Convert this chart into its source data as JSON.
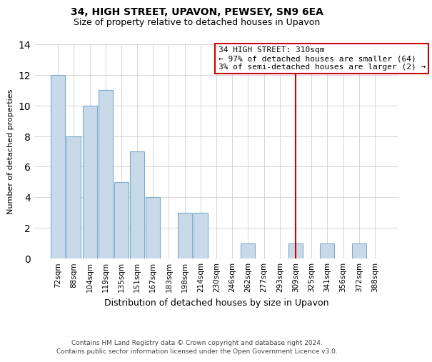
{
  "title": "34, HIGH STREET, UPAVON, PEWSEY, SN9 6EA",
  "subtitle": "Size of property relative to detached houses in Upavon",
  "xlabel": "Distribution of detached houses by size in Upavon",
  "ylabel": "Number of detached properties",
  "categories": [
    "72sqm",
    "88sqm",
    "104sqm",
    "119sqm",
    "135sqm",
    "151sqm",
    "167sqm",
    "183sqm",
    "198sqm",
    "214sqm",
    "230sqm",
    "246sqm",
    "262sqm",
    "277sqm",
    "293sqm",
    "309sqm",
    "325sqm",
    "341sqm",
    "356sqm",
    "372sqm",
    "388sqm"
  ],
  "values": [
    12,
    8,
    10,
    11,
    5,
    7,
    4,
    0,
    3,
    3,
    0,
    0,
    1,
    0,
    0,
    1,
    0,
    1,
    0,
    1,
    0
  ],
  "bar_color": "#c8d9ea",
  "bar_edgecolor": "#7aaac8",
  "reference_line_x_category": "309sqm",
  "reference_line_color": "#cc0000",
  "annotation_line1": "34 HIGH STREET: 310sqm",
  "annotation_line2": "← 97% of detached houses are smaller (64)",
  "annotation_line3": "3% of semi-detached houses are larger (2) →",
  "annotation_box_edgecolor": "#cc0000",
  "annotation_box_facecolor": "#ffffff",
  "ylim": [
    0,
    14
  ],
  "yticks": [
    0,
    2,
    4,
    6,
    8,
    10,
    12,
    14
  ],
  "footer_line1": "Contains HM Land Registry data © Crown copyright and database right 2024.",
  "footer_line2": "Contains public sector information licensed under the Open Government Licence v3.0.",
  "background_color": "#ffffff",
  "grid_color": "#d0d0d0",
  "title_fontsize": 10,
  "subtitle_fontsize": 9,
  "ylabel_fontsize": 8,
  "xlabel_fontsize": 9,
  "tick_fontsize": 7.5,
  "annotation_fontsize": 8,
  "footer_fontsize": 6.5
}
